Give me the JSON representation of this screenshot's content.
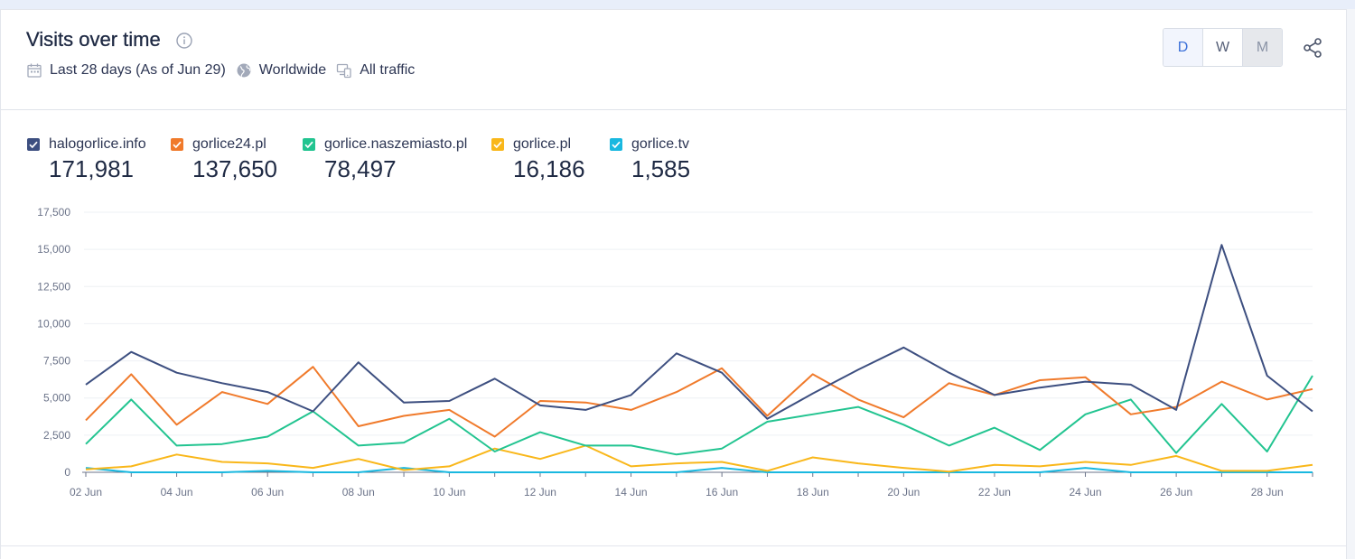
{
  "header": {
    "title": "Visits over time",
    "date_range": "Last 28 days (As of Jun 29)",
    "region": "Worldwide",
    "traffic": "All traffic",
    "granularity": [
      {
        "label": "D",
        "state": "active"
      },
      {
        "label": "W",
        "state": "normal"
      },
      {
        "label": "M",
        "state": "disabled"
      }
    ]
  },
  "legend": [
    {
      "name": "halogorlice.info",
      "total": "171,981",
      "color": "#3d4f80"
    },
    {
      "name": "gorlice24.pl",
      "total": "137,650",
      "color": "#f07a2b"
    },
    {
      "name": "gorlice.naszemiasto.pl",
      "total": "78,497",
      "color": "#22c490"
    },
    {
      "name": "gorlice.pl",
      "total": "16,186",
      "color": "#f9b71a"
    },
    {
      "name": "gorlice.tv",
      "total": "1,585",
      "color": "#19b8e0"
    }
  ],
  "chart_data": {
    "type": "line",
    "x": [
      "02 Jun",
      "03 Jun",
      "04 Jun",
      "05 Jun",
      "06 Jun",
      "07 Jun",
      "08 Jun",
      "09 Jun",
      "10 Jun",
      "11 Jun",
      "12 Jun",
      "13 Jun",
      "14 Jun",
      "15 Jun",
      "16 Jun",
      "17 Jun",
      "18 Jun",
      "19 Jun",
      "20 Jun",
      "21 Jun",
      "22 Jun",
      "23 Jun",
      "24 Jun",
      "25 Jun",
      "26 Jun",
      "27 Jun",
      "28 Jun",
      "29 Jun"
    ],
    "x_tick_labels": [
      "02 Jun",
      "04 Jun",
      "06 Jun",
      "08 Jun",
      "10 Jun",
      "12 Jun",
      "14 Jun",
      "16 Jun",
      "18 Jun",
      "20 Jun",
      "22 Jun",
      "24 Jun",
      "26 Jun",
      "28 Jun"
    ],
    "y_ticks": [
      0,
      2500,
      5000,
      7500,
      10000,
      12500,
      15000,
      17500
    ],
    "y_tick_labels": [
      "0",
      "2,500",
      "5,000",
      "7,500",
      "10,000",
      "12,500",
      "15,000",
      "17,500"
    ],
    "ylim": [
      0,
      17500
    ],
    "grid": true,
    "series": [
      {
        "name": "halogorlice.info",
        "color": "#3d4f80",
        "values": [
          5900,
          8100,
          6700,
          6000,
          5400,
          4100,
          7400,
          4700,
          4800,
          6300,
          4500,
          4200,
          5200,
          8000,
          6700,
          3600,
          5300,
          6900,
          8400,
          6700,
          5200,
          5700,
          6100,
          5900,
          4200,
          15300,
          6500,
          4100
        ]
      },
      {
        "name": "gorlice24.pl",
        "color": "#f07a2b",
        "values": [
          3500,
          6600,
          3200,
          5400,
          4600,
          7100,
          3100,
          3800,
          4200,
          2400,
          4800,
          4700,
          4200,
          5400,
          7000,
          3800,
          6600,
          4900,
          3700,
          6000,
          5200,
          6200,
          6400,
          3900,
          4400,
          6100,
          4900,
          5600
        ]
      },
      {
        "name": "gorlice.naszemiasto.pl",
        "color": "#22c490",
        "values": [
          1900,
          4900,
          1800,
          1900,
          2400,
          4100,
          1800,
          2000,
          3600,
          1400,
          2700,
          1800,
          1800,
          1200,
          1600,
          3400,
          3900,
          4400,
          3200,
          1800,
          3000,
          1500,
          3900,
          4900,
          1300,
          4600,
          1400,
          6500
        ]
      },
      {
        "name": "gorlice.pl",
        "color": "#f9b71a",
        "values": [
          200,
          400,
          1200,
          700,
          600,
          300,
          900,
          150,
          400,
          1600,
          900,
          1800,
          400,
          600,
          700,
          100,
          1000,
          600,
          300,
          50,
          500,
          400,
          700,
          500,
          1100,
          100,
          100,
          500
        ]
      },
      {
        "name": "gorlice.tv",
        "color": "#19b8e0",
        "values": [
          300,
          0,
          0,
          0,
          100,
          0,
          0,
          300,
          0,
          0,
          0,
          0,
          0,
          0,
          300,
          0,
          0,
          0,
          0,
          0,
          0,
          0,
          300,
          0,
          0,
          0,
          0,
          0
        ]
      }
    ]
  }
}
